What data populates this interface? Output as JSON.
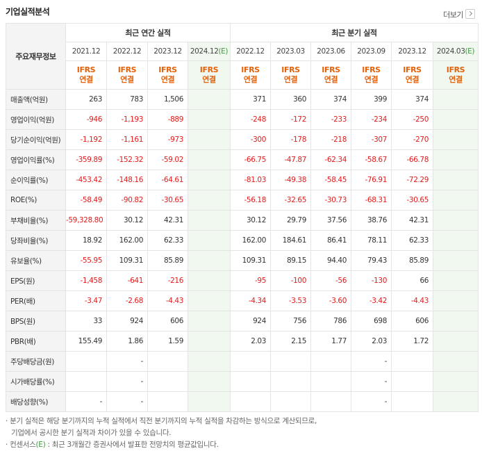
{
  "header": {
    "title": "기업실적분석",
    "more_label": "더보기"
  },
  "table": {
    "corner_label": "주요재무정보",
    "group_annual": "최근 연간 실적",
    "group_quarter": "최근 분기 실적",
    "periods": [
      "2021.12",
      "2022.12",
      "2023.12",
      "2024.12",
      "2022.12",
      "2023.03",
      "2023.06",
      "2023.09",
      "2023.12",
      "2024.03"
    ],
    "estimate_mark": "(E)",
    "ifrs_top": "IFRS",
    "ifrs_bottom": "연결",
    "rows": [
      {
        "label": "매출액(억원)",
        "values": [
          "263",
          "783",
          "1,506",
          "",
          "371",
          "360",
          "374",
          "399",
          "374",
          ""
        ]
      },
      {
        "label": "영업이익(억원)",
        "values": [
          "-946",
          "-1,193",
          "-889",
          "",
          "-248",
          "-172",
          "-233",
          "-234",
          "-250",
          ""
        ]
      },
      {
        "label": "당기순이익(억원)",
        "values": [
          "-1,192",
          "-1,161",
          "-973",
          "",
          "-300",
          "-178",
          "-218",
          "-307",
          "-270",
          ""
        ]
      },
      {
        "label": "영업이익률(%)",
        "values": [
          "-359.89",
          "-152.32",
          "-59.02",
          "",
          "-66.75",
          "-47.87",
          "-62.34",
          "-58.67",
          "-66.78",
          ""
        ]
      },
      {
        "label": "순이익률(%)",
        "values": [
          "-453.42",
          "-148.16",
          "-64.61",
          "",
          "-81.03",
          "-49.38",
          "-58.45",
          "-76.91",
          "-72.29",
          ""
        ]
      },
      {
        "label": "ROE(%)",
        "values": [
          "-58.49",
          "-90.82",
          "-30.65",
          "",
          "-56.18",
          "-32.65",
          "-30.73",
          "-68.31",
          "-30.65",
          ""
        ]
      },
      {
        "label": "부채비율(%)",
        "values": [
          "-59,328.80",
          "30.12",
          "42.31",
          "",
          "30.12",
          "29.79",
          "37.56",
          "38.76",
          "42.31",
          ""
        ]
      },
      {
        "label": "당좌비율(%)",
        "values": [
          "18.92",
          "162.00",
          "62.33",
          "",
          "162.00",
          "184.61",
          "86.41",
          "78.11",
          "62.33",
          ""
        ]
      },
      {
        "label": "유보율(%)",
        "values": [
          "-55.95",
          "109.31",
          "85.89",
          "",
          "109.31",
          "89.15",
          "94.40",
          "79.43",
          "85.89",
          ""
        ]
      },
      {
        "label": "EPS(원)",
        "values": [
          "-1,458",
          "-641",
          "-216",
          "",
          "-95",
          "-100",
          "-56",
          "-130",
          "66",
          ""
        ]
      },
      {
        "label": "PER(배)",
        "values": [
          "-3.47",
          "-2.68",
          "-4.43",
          "",
          "-4.34",
          "-3.53",
          "-3.60",
          "-3.42",
          "-4.43",
          ""
        ]
      },
      {
        "label": "BPS(원)",
        "values": [
          "33",
          "924",
          "606",
          "",
          "924",
          "756",
          "786",
          "698",
          "606",
          ""
        ]
      },
      {
        "label": "PBR(배)",
        "values": [
          "155.49",
          "1.86",
          "1.59",
          "",
          "2.03",
          "2.15",
          "1.77",
          "2.03",
          "1.72",
          ""
        ]
      },
      {
        "label": "주당배당금(원)",
        "values": [
          "",
          "-",
          "",
          "",
          "",
          "",
          "",
          "-",
          "",
          ""
        ]
      },
      {
        "label": "시가배당률(%)",
        "values": [
          "",
          "-",
          "",
          "",
          "",
          "",
          "",
          "-",
          "",
          ""
        ]
      },
      {
        "label": "배당성향(%)",
        "values": [
          "-",
          "-",
          "",
          "",
          "",
          "",
          "",
          "-",
          "",
          ""
        ]
      }
    ]
  },
  "notes": {
    "line1": "· 분기 실적은 해당 분기까지의 누적 실적에서 직전 분기까지의 누적 실적을 차감하는 방식으로 계산되므로,",
    "line2": "  기업에서 공시한 분기 실적과 차이가 있을 수 있습니다.",
    "line3_pre": "· 컨센서스",
    "line3_mark": "(E)",
    "line3_post": " : 최근 3개월간 증권사에서 발표한 전망치의 평균값입니다."
  },
  "colors": {
    "negative": "#e21a1a",
    "ifrs": "#e4620a",
    "estimate_bg": "#f1f8ef",
    "estimate_mark": "#3c9a3c"
  }
}
